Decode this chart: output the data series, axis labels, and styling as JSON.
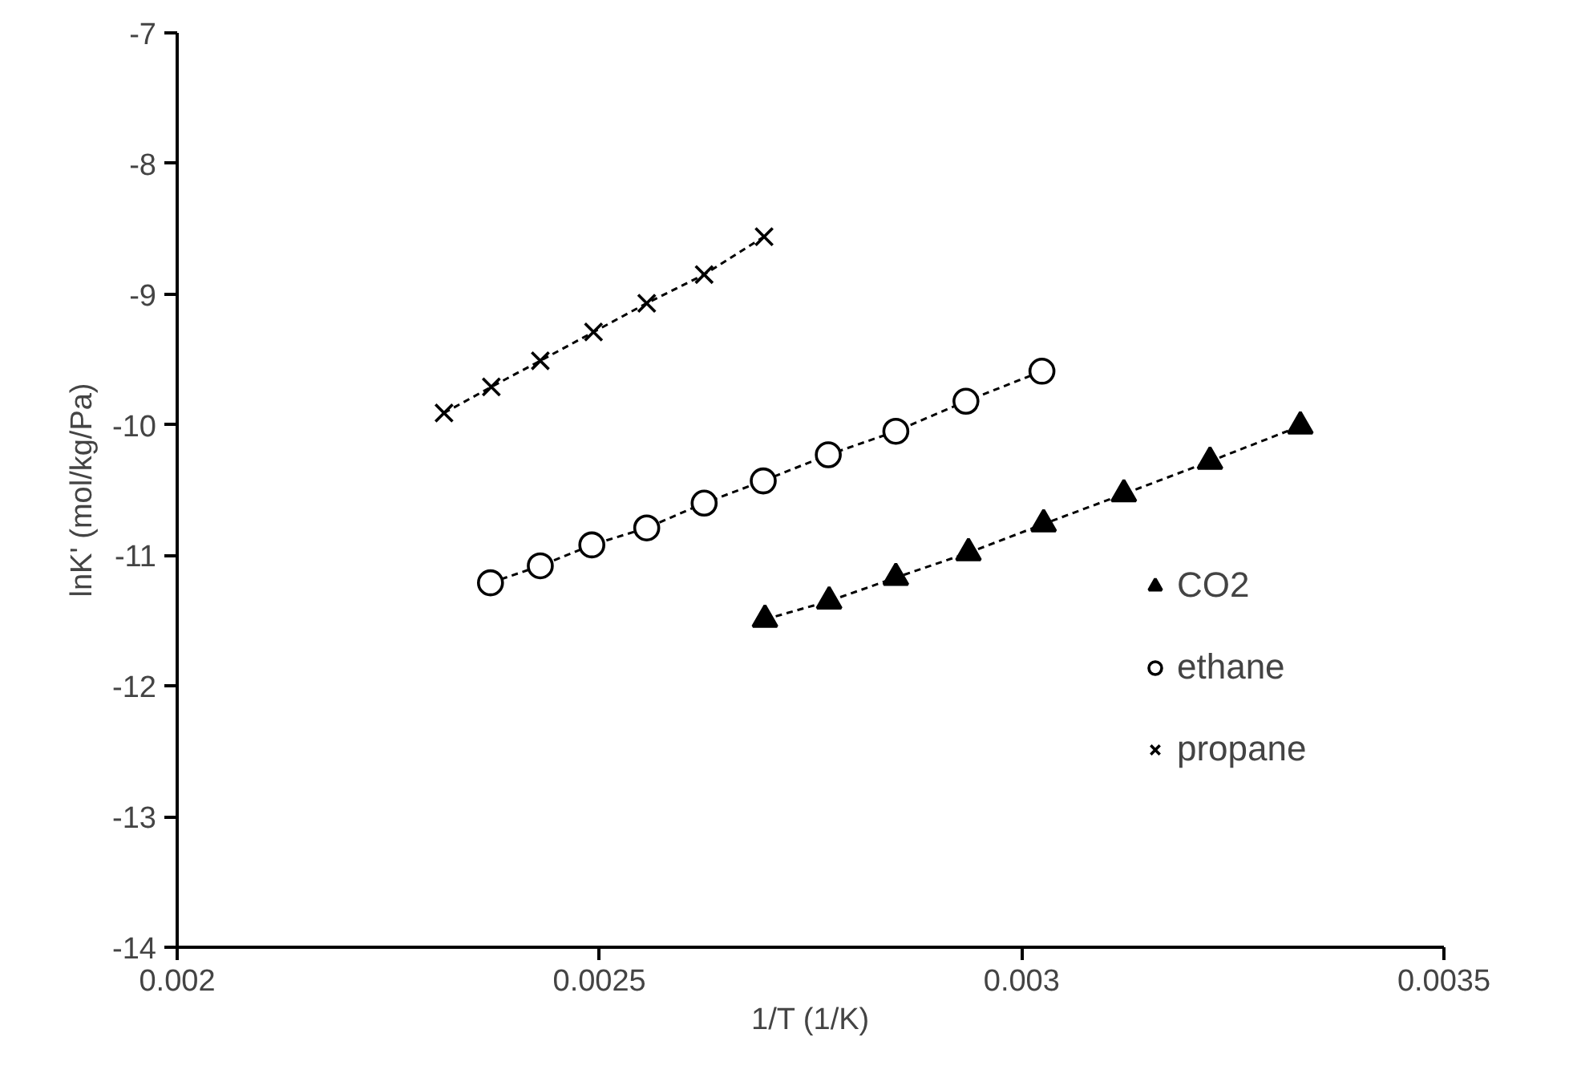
{
  "chart_data": {
    "type": "line",
    "xlabel": "1/T (1/K)",
    "ylabel": "lnK' (mol/kg/Pa)",
    "xlim": [
      0.002,
      0.0035
    ],
    "xticks": [
      0.002,
      0.0025,
      0.003,
      0.0035
    ],
    "ylim": [
      -14,
      -7
    ],
    "yticks": [
      -14,
      -13,
      -12,
      -11,
      -10,
      -9,
      -8,
      -7
    ],
    "grid": false,
    "legend": "right",
    "line_style": "dashed",
    "series": [
      {
        "name": "CO2",
        "color": "#000000",
        "marker": "triangle",
        "x": [
          0.002696,
          0.002772,
          0.002851,
          0.002937,
          0.003026,
          0.003121,
          0.003223,
          0.00333
        ],
        "values": [
          -11.49,
          -11.35,
          -11.17,
          -10.98,
          -10.76,
          -10.53,
          -10.28,
          -10.01
        ]
      },
      {
        "name": "ethane",
        "color": "#000000",
        "marker": "circle",
        "x": [
          0.002371,
          0.00243,
          0.002491,
          0.002556,
          0.002624,
          0.002694,
          0.002771,
          0.002851,
          0.002934,
          0.003024
        ],
        "values": [
          -11.21,
          -11.08,
          -10.92,
          -10.79,
          -10.6,
          -10.43,
          -10.23,
          -10.05,
          -9.82,
          -9.59
        ]
      },
      {
        "name": "propane",
        "color": "#000000",
        "marker": "cross",
        "x": [
          0.002316,
          0.002372,
          0.00243,
          0.002493,
          0.002556,
          0.002624,
          0.002695
        ],
        "values": [
          -9.91,
          -9.71,
          -9.51,
          -9.29,
          -9.07,
          -8.85,
          -8.56
        ]
      }
    ]
  }
}
